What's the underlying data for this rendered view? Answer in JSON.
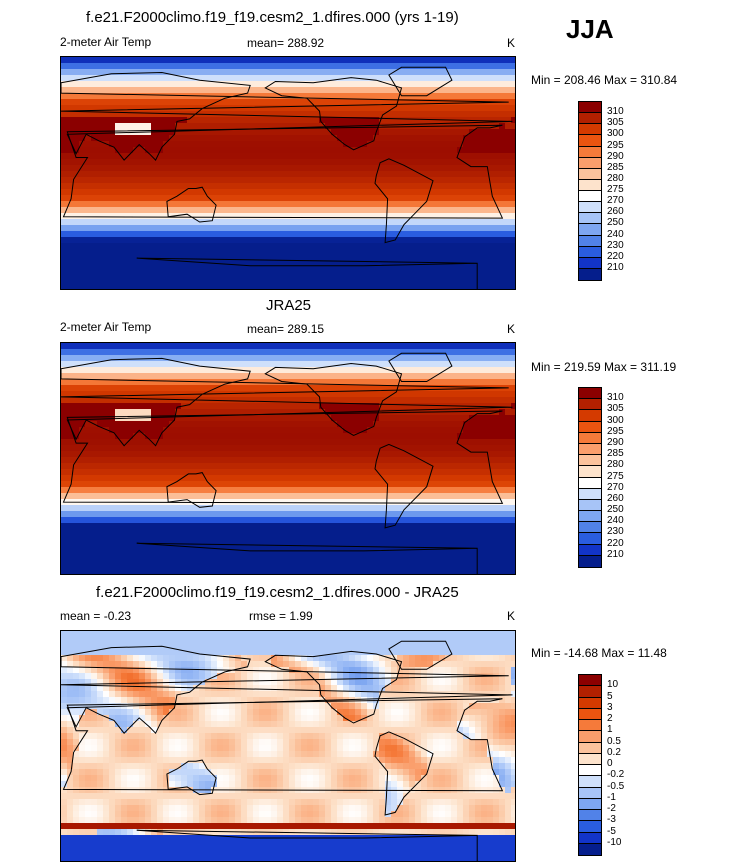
{
  "season": "JJA",
  "panels": [
    {
      "title": "f.e21.F2000climo.f19_f19.cesm2_1.dfires.000 (yrs 1-19)",
      "left_label": "2-meter Air Temp",
      "mid_label": "mean= 288.92",
      "units": "K",
      "minmax": "Min = 208.46 Max = 310.84",
      "colorbar": {
        "labels": [
          "310",
          "305",
          "300",
          "295",
          "290",
          "285",
          "280",
          "275",
          "270",
          "260",
          "250",
          "240",
          "230",
          "220",
          "210"
        ],
        "colors": [
          "#8b0000",
          "#b22000",
          "#d43a00",
          "#ea5410",
          "#f57a3a",
          "#fa9e6c",
          "#fbc29c",
          "#fde3cc",
          "#ffffff",
          "#cfe0fb",
          "#a7c4f7",
          "#7ea6f1",
          "#5182e8",
          "#2a5de0",
          "#1234c8",
          "#051e8c"
        ]
      },
      "style": "temp_model"
    },
    {
      "title": "JRA25",
      "left_label": "2-meter Air Temp",
      "mid_label": "mean= 289.15",
      "units": "K",
      "minmax": "Min = 219.59 Max = 311.19",
      "colorbar": {
        "labels": [
          "310",
          "305",
          "300",
          "295",
          "290",
          "285",
          "280",
          "275",
          "270",
          "260",
          "250",
          "240",
          "230",
          "220",
          "210"
        ],
        "colors": [
          "#8b0000",
          "#b22000",
          "#d43a00",
          "#ea5410",
          "#f57a3a",
          "#fa9e6c",
          "#fbc29c",
          "#fde3cc",
          "#ffffff",
          "#cfe0fb",
          "#a7c4f7",
          "#7ea6f1",
          "#5182e8",
          "#2a5de0",
          "#1234c8",
          "#051e8c"
        ]
      },
      "style": "temp_obs"
    },
    {
      "title": "f.e21.F2000climo.f19_f19.cesm2_1.dfires.000 - JRA25",
      "left_label": "mean =  -0.23",
      "mid_label": "rmse =   1.99",
      "units": "K",
      "minmax": "Min = -14.68 Max =  11.48",
      "colorbar": {
        "labels": [
          "10",
          "5",
          "3",
          "2",
          "1",
          "0.5",
          "0.2",
          "0",
          "-0.2",
          "-0.5",
          "-1",
          "-2",
          "-3",
          "-5",
          "-10"
        ],
        "colors": [
          "#8b0000",
          "#b22000",
          "#d43a00",
          "#ea5410",
          "#f57a3a",
          "#fa9e6c",
          "#fbc29c",
          "#fde3cc",
          "#ffffff",
          "#cfe0fb",
          "#a7c4f7",
          "#7ea6f1",
          "#5182e8",
          "#2a5de0",
          "#1234c8",
          "#051e8c"
        ]
      },
      "style": "diff"
    }
  ]
}
